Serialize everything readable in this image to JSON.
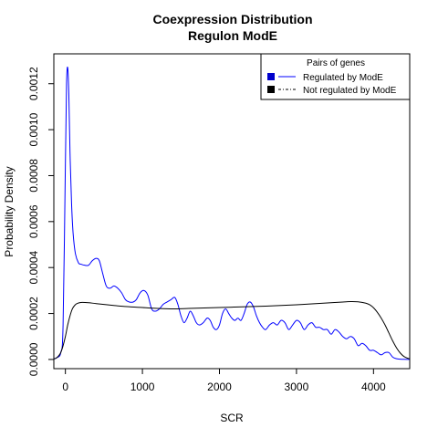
{
  "chart_data": {
    "type": "line",
    "title": "Coexpression Distribution",
    "subtitle": "Regulon ModE",
    "xlabel": "SCR",
    "ylabel": "Probability Density",
    "xlim": [
      -150,
      4470
    ],
    "ylim": [
      -4e-05,
      0.00133
    ],
    "x_ticks": [
      0,
      1000,
      2000,
      3000,
      4000
    ],
    "x_tick_labels": [
      "0",
      "1000",
      "2000",
      "3000",
      "4000"
    ],
    "y_ticks": [
      0,
      0.0002,
      0.0004,
      0.0006,
      0.0008,
      0.001,
      0.0012
    ],
    "y_tick_labels": [
      "0.0000",
      "0.0002",
      "0.0004",
      "0.0006",
      "0.0008",
      "0.0010",
      "0.0012"
    ],
    "grid": false,
    "legend": {
      "title": "Pairs of genes",
      "placement": "top-right",
      "entries": [
        "Regulated by  ModE",
        "Not regulated by  ModE"
      ]
    },
    "series": [
      {
        "name": "Regulated by  ModE",
        "color": "#0000ff",
        "x": [
          -180,
          -110,
          -60,
          -30,
          0,
          15,
          30,
          45,
          60,
          80,
          100,
          130,
          170,
          200,
          250,
          300,
          350,
          400,
          440,
          480,
          530,
          580,
          630,
          680,
          730,
          780,
          830,
          880,
          920,
          970,
          1020,
          1070,
          1120,
          1170,
          1220,
          1270,
          1320,
          1370,
          1420,
          1460,
          1500,
          1540,
          1580,
          1620,
          1660,
          1700,
          1740,
          1790,
          1840,
          1880,
          1920,
          1960,
          2000,
          2040,
          2080,
          2120,
          2160,
          2200,
          2240,
          2280,
          2320,
          2360,
          2400,
          2440,
          2480,
          2520,
          2560,
          2600,
          2650,
          2700,
          2750,
          2800,
          2850,
          2900,
          2950,
          3000,
          3050,
          3100,
          3150,
          3200,
          3250,
          3300,
          3350,
          3400,
          3450,
          3500,
          3550,
          3600,
          3650,
          3700,
          3750,
          3800,
          3850,
          3900,
          3950,
          4000,
          4050,
          4100,
          4150,
          4200,
          4250,
          4300,
          4350,
          4400,
          4470
        ],
        "y": [
          2e-06,
          8e-06,
          3e-05,
          0.00015,
          0.00085,
          0.0012,
          0.00127,
          0.00115,
          0.0009,
          0.00068,
          0.00055,
          0.00046,
          0.00042,
          0.000415,
          0.00041,
          0.00041,
          0.00043,
          0.00044,
          0.00043,
          0.00038,
          0.00032,
          0.00031,
          0.00032,
          0.00031,
          0.00029,
          0.00026,
          0.00025,
          0.00025,
          0.00026,
          0.00029,
          0.0003,
          0.00028,
          0.00022,
          0.00021,
          0.00022,
          0.00024,
          0.00025,
          0.00026,
          0.00027,
          0.00024,
          0.00019,
          0.00016,
          0.00018,
          0.00021,
          0.00019,
          0.00016,
          0.00015,
          0.00016,
          0.00018,
          0.00017,
          0.00014,
          0.00013,
          0.00015,
          0.0002,
          0.00022,
          0.0002,
          0.00018,
          0.00017,
          0.00018,
          0.00017,
          0.0002,
          0.00024,
          0.00025,
          0.00023,
          0.00019,
          0.00016,
          0.00014,
          0.00013,
          0.00015,
          0.00016,
          0.00015,
          0.00017,
          0.00016,
          0.00013,
          0.00015,
          0.00017,
          0.00016,
          0.00013,
          0.00015,
          0.00016,
          0.00014,
          0.00014,
          0.00013,
          0.00013,
          0.00011,
          0.00013,
          0.00012,
          0.0001,
          9e-05,
          0.0001,
          9e-05,
          6e-05,
          7e-05,
          6e-05,
          4e-05,
          4e-05,
          3e-05,
          2e-05,
          3e-05,
          3e-05,
          1e-05,
          3e-06,
          1e-06,
          5e-07,
          2e-07
        ]
      },
      {
        "name": "Not regulated by  ModE",
        "color": "#000000",
        "x": [
          -180,
          -150,
          -120,
          -90,
          -60,
          -30,
          0,
          30,
          60,
          90,
          120,
          150,
          200,
          300,
          400,
          600,
          800,
          1000,
          1200,
          1400,
          1600,
          1800,
          2000,
          2200,
          2400,
          2600,
          2800,
          3000,
          3200,
          3400,
          3600,
          3700,
          3800,
          3900,
          3950,
          4000,
          4050,
          4100,
          4150,
          4200,
          4250,
          4300,
          4350,
          4400,
          4470
        ],
        "y": [
          5e-07,
          2e-06,
          6e-06,
          1.5e-05,
          3e-05,
          6e-05,
          0.0001,
          0.00015,
          0.00019,
          0.00022,
          0.000235,
          0.000243,
          0.000248,
          0.000247,
          0.000243,
          0.000236,
          0.00023,
          0.000226,
          0.000222,
          0.00022,
          0.000222,
          0.000224,
          0.000226,
          0.000228,
          0.00023,
          0.000232,
          0.000235,
          0.000238,
          0.000242,
          0.000246,
          0.00025,
          0.000252,
          0.000251,
          0.000245,
          0.000238,
          0.000225,
          0.000205,
          0.00018,
          0.00015,
          0.000115,
          8e-05,
          5e-05,
          2.7e-05,
          1.2e-05,
          2e-06
        ]
      }
    ]
  }
}
